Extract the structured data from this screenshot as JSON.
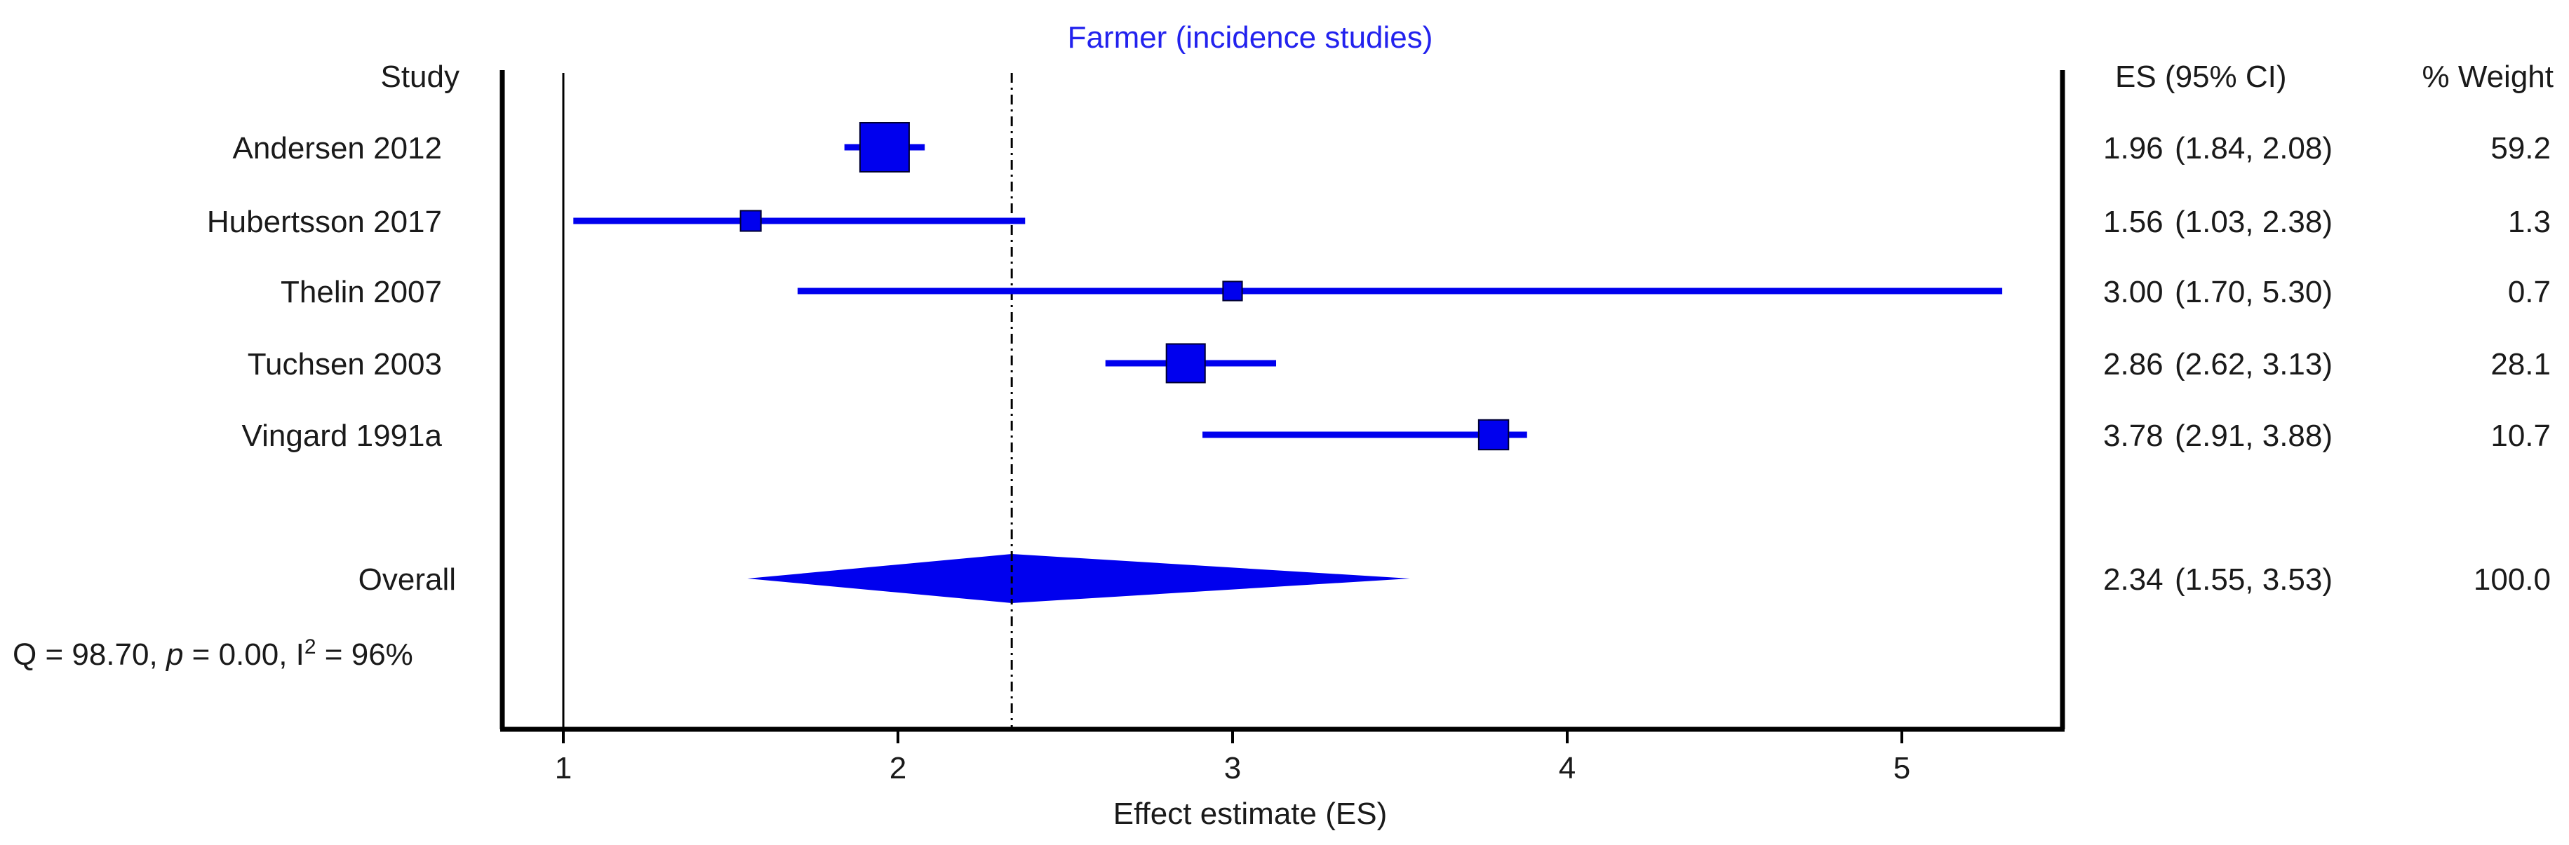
{
  "chart_data": {
    "type": "forest",
    "title": "Farmer (incidence studies)",
    "xlabel": "Effect estimate (ES)",
    "xlim": [
      0.81,
      5.5
    ],
    "xticks": [
      1,
      2,
      3,
      4,
      5
    ],
    "reference_line": 1,
    "overall_line": 2.34,
    "headers": {
      "study": "Study",
      "es": "ES (95% CI)",
      "weight": "% Weight"
    },
    "studies": [
      {
        "study": "Andersen 2012",
        "es": 1.96,
        "lo": 1.84,
        "hi": 2.08,
        "weight": 59.2,
        "es_text": "1.96",
        "ci_text": "(1.84,  2.08)",
        "weight_text": "59.2"
      },
      {
        "study": "Hubertsson 2017",
        "es": 1.56,
        "lo": 1.03,
        "hi": 2.38,
        "weight": 1.3,
        "es_text": "1.56",
        "ci_text": "(1.03,  2.38)",
        "weight_text": "1.3"
      },
      {
        "study": "Thelin 2007",
        "es": 3.0,
        "lo": 1.7,
        "hi": 5.3,
        "weight": 0.7,
        "es_text": "3.00",
        "ci_text": "(1.70,  5.30)",
        "weight_text": "0.7"
      },
      {
        "study": "Tuchsen 2003",
        "es": 2.86,
        "lo": 2.62,
        "hi": 3.13,
        "weight": 28.1,
        "es_text": "2.86",
        "ci_text": "(2.62,  3.13)",
        "weight_text": "28.1"
      },
      {
        "study": "Vingard 1991a",
        "es": 3.78,
        "lo": 2.91,
        "hi": 3.88,
        "weight": 10.7,
        "es_text": "3.78",
        "ci_text": "(2.91,  3.88)",
        "weight_text": "10.7"
      }
    ],
    "overall": {
      "label": "Overall",
      "es": 2.34,
      "lo": 1.55,
      "hi": 3.53,
      "es_text": "2.34",
      "ci_text": "(1.55,  3.53)",
      "weight_text": "100.0"
    },
    "heterogeneity": {
      "q_text": "Q = 98.70, ",
      "p_symbol": "p",
      "p_text": " = 0.00, I",
      "i2_sup": "2",
      "i2_text": " = 96%"
    },
    "colors": {
      "marker": "#0000ee",
      "axis": "#000000",
      "text": "#1a1a1a",
      "title": "#2222ee"
    }
  }
}
